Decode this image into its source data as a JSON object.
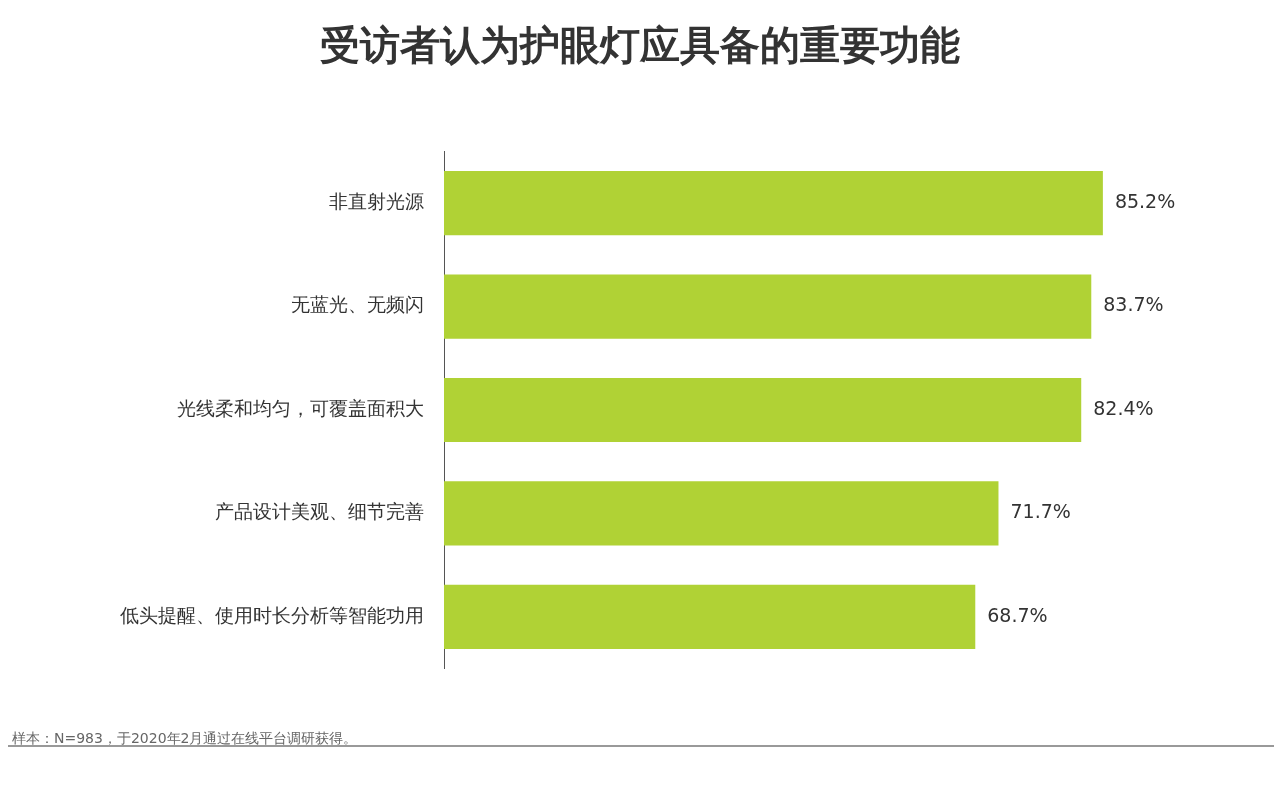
{
  "chart_data": {
    "type": "bar",
    "orientation": "horizontal",
    "title": "受访者认为护眼灯应具备的重要功能",
    "categories": [
      "非直射光源",
      "无蓝光、无频闪",
      "光线柔和均匀，可覆盖面积大",
      "产品设计美观、细节完善",
      "低头提醒、使用时长分析等智能功用"
    ],
    "values": [
      85.2,
      83.7,
      82.4,
      71.7,
      68.7
    ],
    "color": "#b0d235",
    "value_labels": [
      "85.2%",
      "83.7%",
      "82.4%",
      "71.7%",
      "68.7%"
    ],
    "tick_labels": "y",
    "grid": false,
    "legend": false,
    "annotations": [
      "样本：N=983，于2020年2月通过在线平台调研获得。"
    ]
  }
}
